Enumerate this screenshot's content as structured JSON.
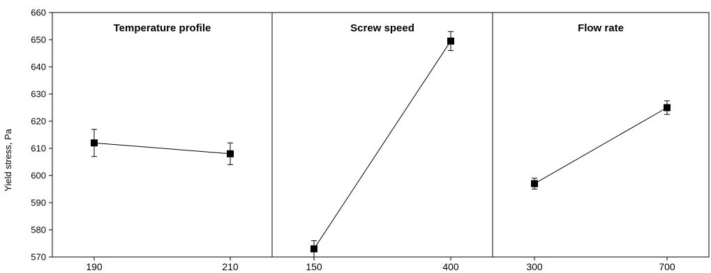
{
  "chart_data": {
    "type": "line",
    "ylabel": "Yield stress, Pa",
    "ylim": [
      570,
      660
    ],
    "yticks": [
      570,
      580,
      590,
      600,
      610,
      620,
      630,
      640,
      650,
      660
    ],
    "grid": false,
    "marker": "square",
    "error_bars": true,
    "panels": [
      {
        "title": "Temperature profile",
        "xticks": [
          "190",
          "210"
        ],
        "x": [
          190,
          210
        ],
        "y": [
          612,
          608
        ],
        "yerr": [
          5,
          4
        ]
      },
      {
        "title": "Screw speed",
        "xticks": [
          "150",
          "400"
        ],
        "x": [
          150,
          400
        ],
        "y": [
          573,
          649.5
        ],
        "yerr": [
          3,
          3.5
        ]
      },
      {
        "title": "Flow rate",
        "xticks": [
          "300",
          "700"
        ],
        "x": [
          300,
          700
        ],
        "y": [
          597,
          625
        ],
        "yerr": [
          2,
          2.5
        ]
      }
    ]
  }
}
